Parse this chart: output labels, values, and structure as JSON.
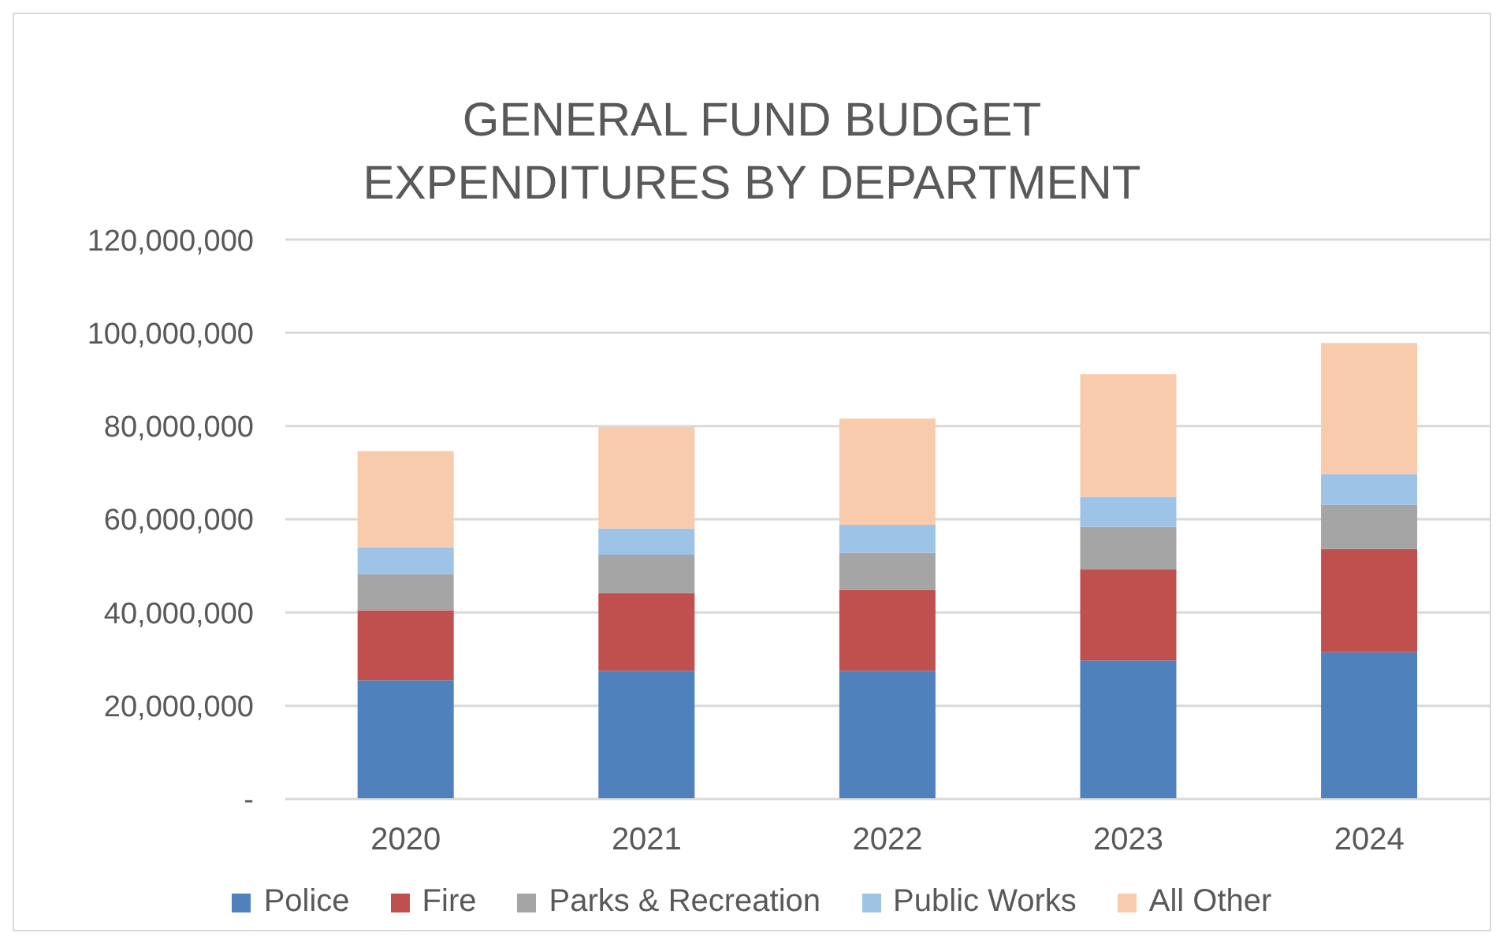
{
  "chart_data": {
    "type": "bar",
    "title": "GENERAL FUND BUDGET\nEXPENDITURES BY DEPARTMENT",
    "categories": [
      "2020",
      "2021",
      "2022",
      "2023",
      "2024"
    ],
    "series": [
      {
        "name": "Police",
        "color": "#4f81bd",
        "values": [
          25500000,
          27500000,
          27500000,
          29700000,
          31500000
        ]
      },
      {
        "name": "Fire",
        "color": "#c0504d",
        "values": [
          15000000,
          16700000,
          17300000,
          19600000,
          22100000
        ]
      },
      {
        "name": "Parks & Recreation",
        "color": "#a5a5a5",
        "values": [
          7700000,
          8200000,
          8000000,
          9100000,
          9500000
        ]
      },
      {
        "name": "Public Works",
        "color": "#9dc3e6",
        "values": [
          5800000,
          5600000,
          6000000,
          6400000,
          6600000
        ]
      },
      {
        "name": "All Other",
        "color": "#f8cbad",
        "values": [
          20600000,
          21800000,
          22800000,
          26300000,
          28100000
        ]
      }
    ],
    "stacked": true,
    "ylim": [
      0,
      120000000
    ],
    "yticks": [
      {
        "value": 0,
        "label": "-"
      },
      {
        "value": 20000000,
        "label": "20,000,000"
      },
      {
        "value": 40000000,
        "label": "40,000,000"
      },
      {
        "value": 60000000,
        "label": "60,000,000"
      },
      {
        "value": 80000000,
        "label": "80,000,000"
      },
      {
        "value": 100000000,
        "label": "100,000,000"
      },
      {
        "value": 120000000,
        "label": "120,000,000"
      }
    ],
    "grid": "y",
    "legend": "bottom"
  }
}
